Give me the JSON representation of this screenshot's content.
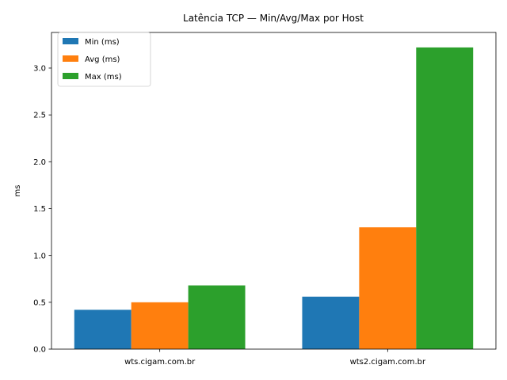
{
  "chart_data": {
    "type": "bar",
    "title": "Latência TCP — Min/Avg/Max por Host",
    "xlabel": "",
    "ylabel": "ms",
    "categories": [
      "wts.cigam.com.br",
      "wts2.cigam.com.br"
    ],
    "series": [
      {
        "name": "Min (ms)",
        "values": [
          0.42,
          0.56
        ],
        "color": "#1f77b4"
      },
      {
        "name": "Avg (ms)",
        "values": [
          0.5,
          1.3
        ],
        "color": "#ff7f0e"
      },
      {
        "name": "Max (ms)",
        "values": [
          0.68,
          3.22
        ],
        "color": "#2ca02c"
      }
    ],
    "ylim": [
      0,
      3.38
    ],
    "yticks": [
      "0.0",
      "0.5",
      "1.0",
      "1.5",
      "2.0",
      "2.5",
      "3.0"
    ],
    "grid": false,
    "legend_position": "upper left"
  }
}
